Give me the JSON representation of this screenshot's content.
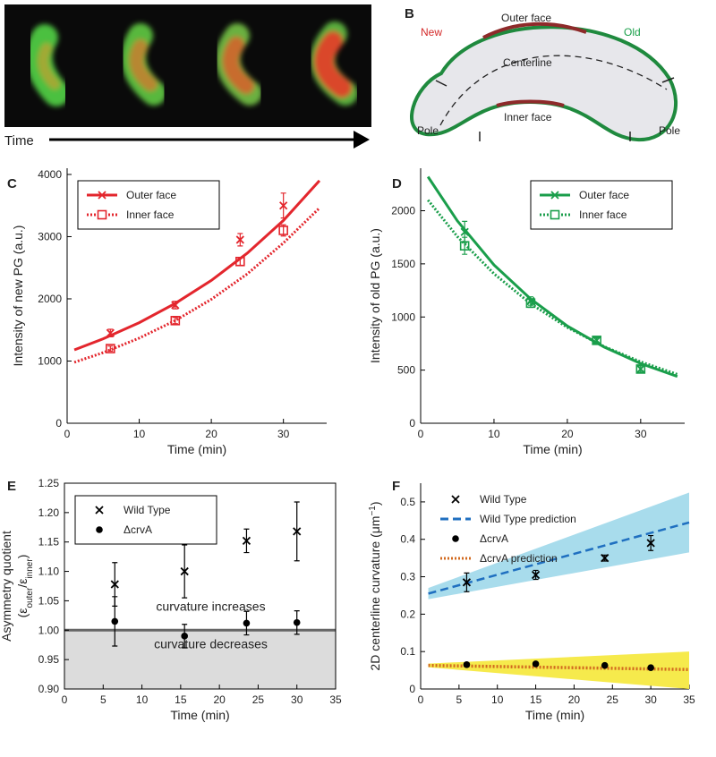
{
  "panel_a": {
    "axis_label": "Time"
  },
  "panel_b": {
    "label": "B",
    "labels": {
      "new": "New",
      "outer_face": "Outer face",
      "old": "Old",
      "centerline": "Centerline",
      "inner_face": "Inner face",
      "pole_left": "Pole",
      "pole_right": "Pole"
    }
  },
  "chart_data": [
    {
      "type": "line",
      "panel": "C",
      "xlabel": "Time (min)",
      "ylabel": "Intensity of new PG (a.u.)",
      "xlim": [
        0,
        36
      ],
      "xticks": [
        0,
        10,
        20,
        30
      ],
      "ylim": [
        0,
        4100
      ],
      "yticks": [
        0,
        1000,
        2000,
        3000,
        4000
      ],
      "legend": "upper left",
      "legend_frame": true,
      "frame": false,
      "series": [
        {
          "name": "Outer face",
          "color": "#e3262d",
          "marker": "x",
          "line_style": "solid",
          "x": [
            6,
            15,
            24,
            30
          ],
          "values": [
            1450,
            1900,
            2950,
            3500
          ],
          "errors": [
            60,
            60,
            100,
            200
          ],
          "fit": {
            "x": [
              1,
              5,
              10,
              15,
              20,
              25,
              30,
              35
            ],
            "values": [
              1180,
              1357,
              1617,
              1927,
              2296,
              2736,
              3260,
              3900
            ]
          }
        },
        {
          "name": "Inner face",
          "color": "#e3262d",
          "marker": "square",
          "line_style": "dotted",
          "x": [
            6,
            15,
            24,
            30
          ],
          "values": [
            1200,
            1650,
            2600,
            3100
          ],
          "errors": [
            40,
            50,
            60,
            90
          ],
          "fit": {
            "x": [
              1,
              5,
              10,
              15,
              20,
              25,
              30,
              35
            ],
            "values": [
              980,
              1135,
              1369,
              1651,
              1992,
              2402,
              2898,
              3460
            ]
          }
        }
      ]
    },
    {
      "type": "line",
      "panel": "D",
      "xlabel": "Time (min)",
      "ylabel": "Intensity of old PG (a.u.)",
      "xlim": [
        0,
        36
      ],
      "xticks": [
        0,
        10,
        20,
        30
      ],
      "ylim": [
        0,
        2400
      ],
      "yticks": [
        0,
        500,
        1000,
        1500,
        2000
      ],
      "legend": "upper right",
      "legend_frame": true,
      "frame": false,
      "series": [
        {
          "name": "Outer face",
          "color": "#1a9e4b",
          "marker": "x",
          "line_style": "solid",
          "x": [
            6,
            15,
            24,
            30
          ],
          "values": [
            1800,
            1150,
            780,
            510
          ],
          "errors": [
            100,
            40,
            30,
            30
          ],
          "fit": {
            "x": [
              1,
              5,
              10,
              15,
              20,
              25,
              30,
              35
            ],
            "values": [
              2320,
              1905,
              1490,
              1170,
              915,
              718,
              562,
              440
            ]
          }
        },
        {
          "name": "Inner face",
          "color": "#1a9e4b",
          "marker": "square",
          "line_style": "dotted",
          "x": [
            6,
            15,
            24,
            30
          ],
          "values": [
            1670,
            1130,
            780,
            510
          ],
          "errors": [
            80,
            40,
            25,
            30
          ],
          "fit": {
            "x": [
              1,
              5,
              10,
              15,
              20,
              25,
              30,
              35
            ],
            "values": [
              2100,
              1757,
              1407,
              1125,
              902,
              722,
              578,
              460
            ]
          }
        }
      ]
    },
    {
      "type": "scatter",
      "panel": "E",
      "xlabel": "Time (min)",
      "ylabel": "Asymmetry quotient",
      "ylabel_line2": [
        "(ε",
        "outer",
        "/ε",
        "inner",
        ")"
      ],
      "ylabel_shift": "sub",
      "xlim": [
        0,
        35
      ],
      "xticks": [
        0,
        5,
        10,
        15,
        20,
        25,
        30,
        35
      ],
      "ylim": [
        0.9,
        1.25
      ],
      "yticks": [
        {
          "value": 0.9,
          "label": "0.90"
        },
        {
          "value": 0.95,
          "label": "0.95"
        },
        {
          "value": 1.0,
          "label": "1.00"
        },
        {
          "value": 1.05,
          "label": "1.05"
        },
        {
          "value": 1.1,
          "label": "1.10"
        },
        {
          "value": 1.15,
          "label": "1.15"
        },
        {
          "value": 1.2,
          "label": "1.20"
        },
        {
          "value": 1.25,
          "label": "1.25"
        }
      ],
      "legend": "upper left",
      "legend_frame": true,
      "frame": true,
      "reference_line": 1.0,
      "annotations": [
        "curvature increases",
        "curvature decreases"
      ],
      "series": [
        {
          "name": "Wild Type",
          "color": "#000000",
          "marker": "x",
          "x": [
            6.5,
            15.5,
            23.5,
            30
          ],
          "values": [
            1.078,
            1.1,
            1.152,
            1.168
          ],
          "errors": [
            0.037,
            0.045,
            0.02,
            0.05
          ]
        },
        {
          "name": "ΔcrvA",
          "color": "#000000",
          "marker": "dot",
          "x": [
            6.5,
            15.5,
            23.5,
            30
          ],
          "values": [
            1.015,
            0.99,
            1.012,
            1.013
          ],
          "errors": [
            0.042,
            0.02,
            0.02,
            0.02
          ]
        }
      ]
    },
    {
      "type": "scatter",
      "panel": "F",
      "xlabel": "Time (min)",
      "ylabel": [
        "2D centerline curvature (μm",
        "−1",
        ")"
      ],
      "ylabel_shift": "super",
      "xlim": [
        0,
        35
      ],
      "xticks": [
        0,
        5,
        10,
        15,
        20,
        25,
        30,
        35
      ],
      "ylim": [
        0,
        0.55
      ],
      "yticks": [
        0,
        0.1,
        0.2,
        0.3,
        0.4,
        0.5
      ],
      "legend": "upper left",
      "legend_frame": false,
      "frame": false,
      "series": [
        {
          "name": "Wild Type",
          "color": "#000000",
          "marker": "x",
          "x": [
            6,
            15,
            24,
            30
          ],
          "values": [
            0.285,
            0.305,
            0.35,
            0.39
          ],
          "errors": [
            0.025,
            0.012,
            0.008,
            0.02
          ]
        },
        {
          "name": "Wild Type prediction",
          "color": "#1f6fc0",
          "line_style": "dashed",
          "band_color": "#a8dcec",
          "x": [
            1,
            35
          ],
          "values": [
            0.255,
            0.445
          ],
          "lower": [
            0.24,
            0.365
          ],
          "upper": [
            0.27,
            0.525
          ]
        },
        {
          "name": "ΔcrvA",
          "color": "#000000",
          "marker": "dot",
          "x": [
            6,
            15,
            24,
            30
          ],
          "values": [
            0.065,
            0.067,
            0.063,
            0.057
          ],
          "errors": [
            0.005,
            0.004,
            0.003,
            0.003
          ]
        },
        {
          "name": "ΔcrvA prediction",
          "color": "#d2691e",
          "line_style": "dotted",
          "band_color": "#f6ea4c",
          "x": [
            1,
            35
          ],
          "values": [
            0.063,
            0.052
          ],
          "lower": [
            0.058,
            0.0
          ],
          "upper": [
            0.068,
            0.1
          ]
        }
      ]
    }
  ]
}
